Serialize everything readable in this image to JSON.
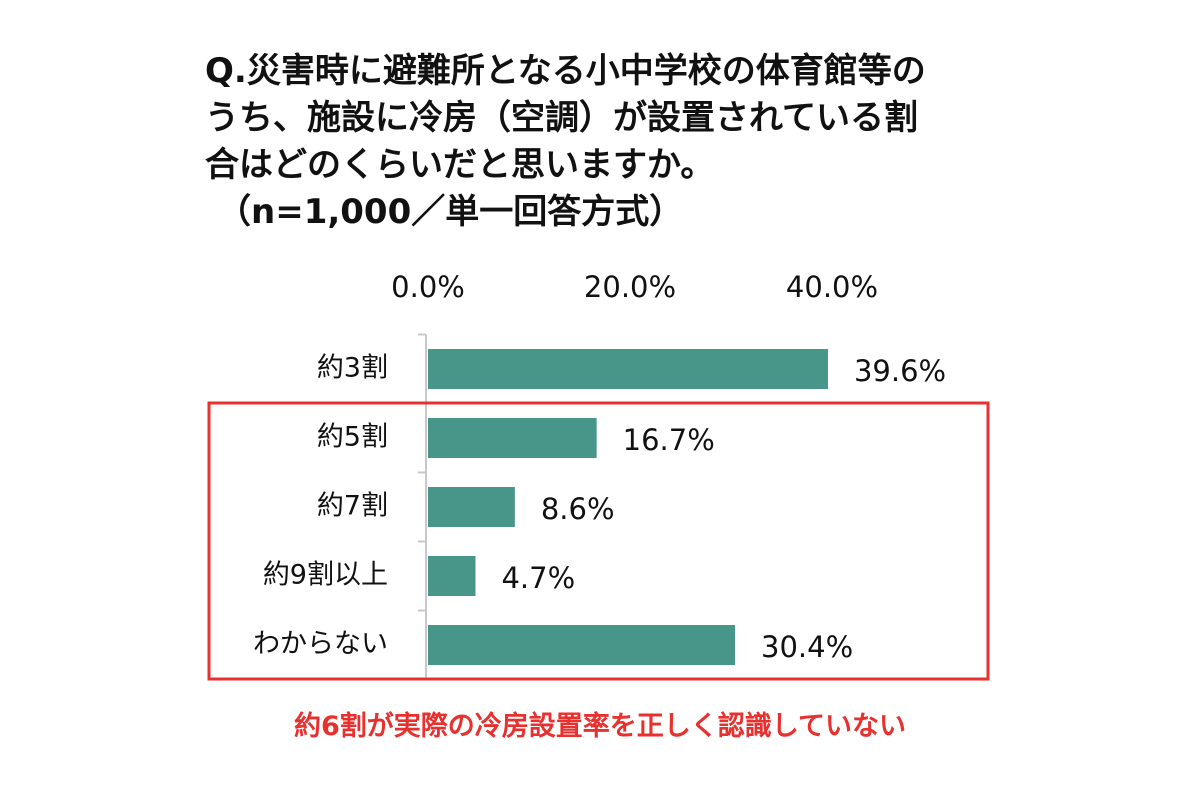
{
  "title": {
    "lines": [
      "Q.災害時に避難所となる小中学校の体育館等の",
      "うち、施設に冷房（空調）が設置されている割",
      "合はどのくらいだと思いますか。"
    ],
    "note": "（n=1,000／単一回答方式）"
  },
  "chart_data": {
    "type": "bar",
    "orientation": "horizontal",
    "categories": [
      "約3割",
      "約5割",
      "約7割",
      "約9割以上",
      "わからない"
    ],
    "values": [
      39.6,
      16.7,
      8.6,
      4.7,
      30.4
    ],
    "data_labels": [
      "39.6%",
      "16.7%",
      "8.6%",
      "4.7%",
      "30.4%"
    ],
    "x_ticks": [
      0.0,
      20.0,
      40.0
    ],
    "x_tick_labels": [
      "0.0%",
      "20.0%",
      "40.0%"
    ],
    "xlim": [
      0,
      40
    ],
    "axis_position": "top",
    "grid": false,
    "bar_color": "#48958a",
    "highlight": {
      "categories": [
        "約5割",
        "約7割",
        "約9割以上",
        "わからない"
      ],
      "color": "#e8312f"
    }
  },
  "callout": {
    "text": "約6割が実際の冷房設置率を正しく認識していない",
    "color": "#e8312f"
  }
}
